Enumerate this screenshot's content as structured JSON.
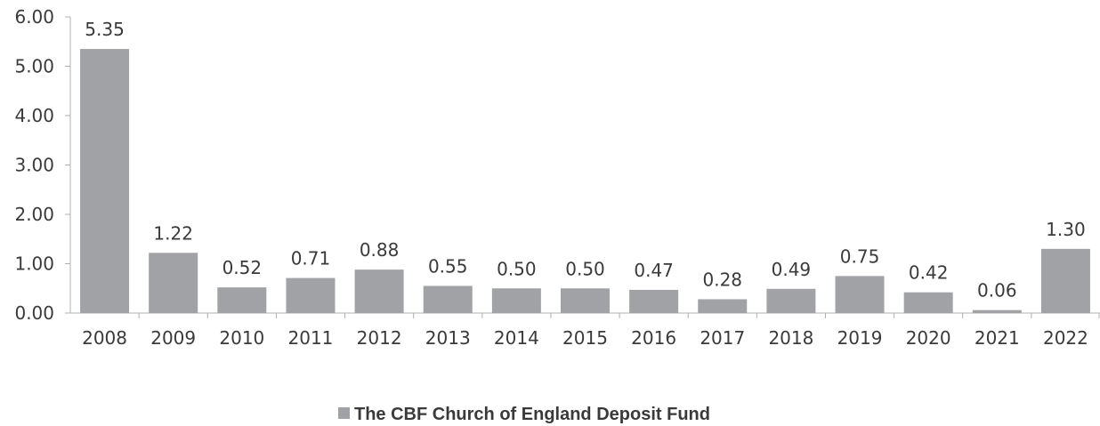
{
  "chart_data": {
    "type": "bar",
    "categories": [
      "2008",
      "2009",
      "2010",
      "2011",
      "2012",
      "2013",
      "2014",
      "2015",
      "2016",
      "2017",
      "2018",
      "2019",
      "2020",
      "2021",
      "2022"
    ],
    "series": [
      {
        "name": "The CBF Church of England Deposit Fund",
        "values": [
          5.35,
          1.22,
          0.52,
          0.71,
          0.88,
          0.55,
          0.5,
          0.5,
          0.47,
          0.28,
          0.49,
          0.75,
          0.42,
          0.06,
          1.3
        ],
        "labels": [
          "5.35",
          "1.22",
          "0.52",
          "0.71",
          "0.88",
          "0.55",
          "0.50",
          "0.50",
          "0.47",
          "0.28",
          "0.49",
          "0.75",
          "0.42",
          "0.06",
          "1.30"
        ],
        "color": "#a0a2a5"
      }
    ],
    "yticks": [
      "0.00",
      "1.00",
      "2.00",
      "3.00",
      "4.00",
      "5.00",
      "6.00"
    ],
    "ylim": [
      0,
      6
    ],
    "title": "",
    "xlabel": "",
    "ylabel": "",
    "grid": false,
    "legend": "bottom-center"
  },
  "colors": {
    "bar": "#a0a2a5",
    "axis": "#b0b0b0",
    "text": "#3a3a3a"
  }
}
